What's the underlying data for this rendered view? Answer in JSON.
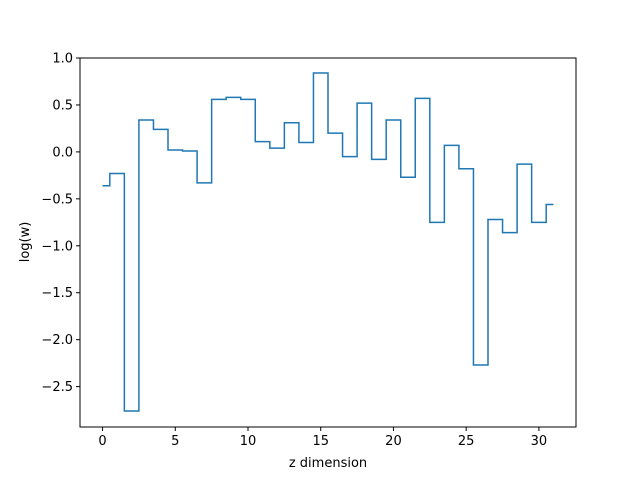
{
  "chart_data": {
    "type": "line",
    "drawstyle": "steps-mid",
    "title": "",
    "xlabel": "z dimension",
    "ylabel": "log(w)",
    "xlim": [
      -1.55,
      32.55
    ],
    "ylim": [
      -2.93,
      1.0
    ],
    "grid": false,
    "xticks": [
      0,
      5,
      10,
      15,
      20,
      25,
      30
    ],
    "xtick_labels": [
      "0",
      "5",
      "10",
      "15",
      "20",
      "25",
      "30"
    ],
    "yticks": [
      1.0,
      0.5,
      0.0,
      -0.5,
      -1.0,
      -1.5,
      -2.0,
      -2.5
    ],
    "ytick_labels": [
      "1.0",
      "0.5",
      "0.0",
      "−0.5",
      "−1.0",
      "−1.5",
      "−2.0",
      "−2.5"
    ],
    "series": [
      {
        "color": "#1f77b4",
        "x": [
          0,
          1,
          2,
          3,
          4,
          5,
          6,
          7,
          8,
          9,
          10,
          11,
          12,
          13,
          14,
          15,
          16,
          17,
          18,
          19,
          20,
          21,
          22,
          23,
          24,
          25,
          26,
          27,
          28,
          29,
          30,
          31
        ],
        "values": [
          -0.36,
          -0.23,
          -2.76,
          0.34,
          0.24,
          0.02,
          0.01,
          -0.33,
          0.56,
          0.58,
          0.56,
          0.11,
          0.04,
          0.31,
          0.1,
          0.84,
          0.2,
          -0.05,
          0.52,
          -0.08,
          0.34,
          -0.27,
          0.57,
          -0.75,
          0.07,
          -0.18,
          -2.27,
          -0.72,
          -0.86,
          -0.13,
          -0.75,
          -0.56
        ]
      }
    ]
  }
}
